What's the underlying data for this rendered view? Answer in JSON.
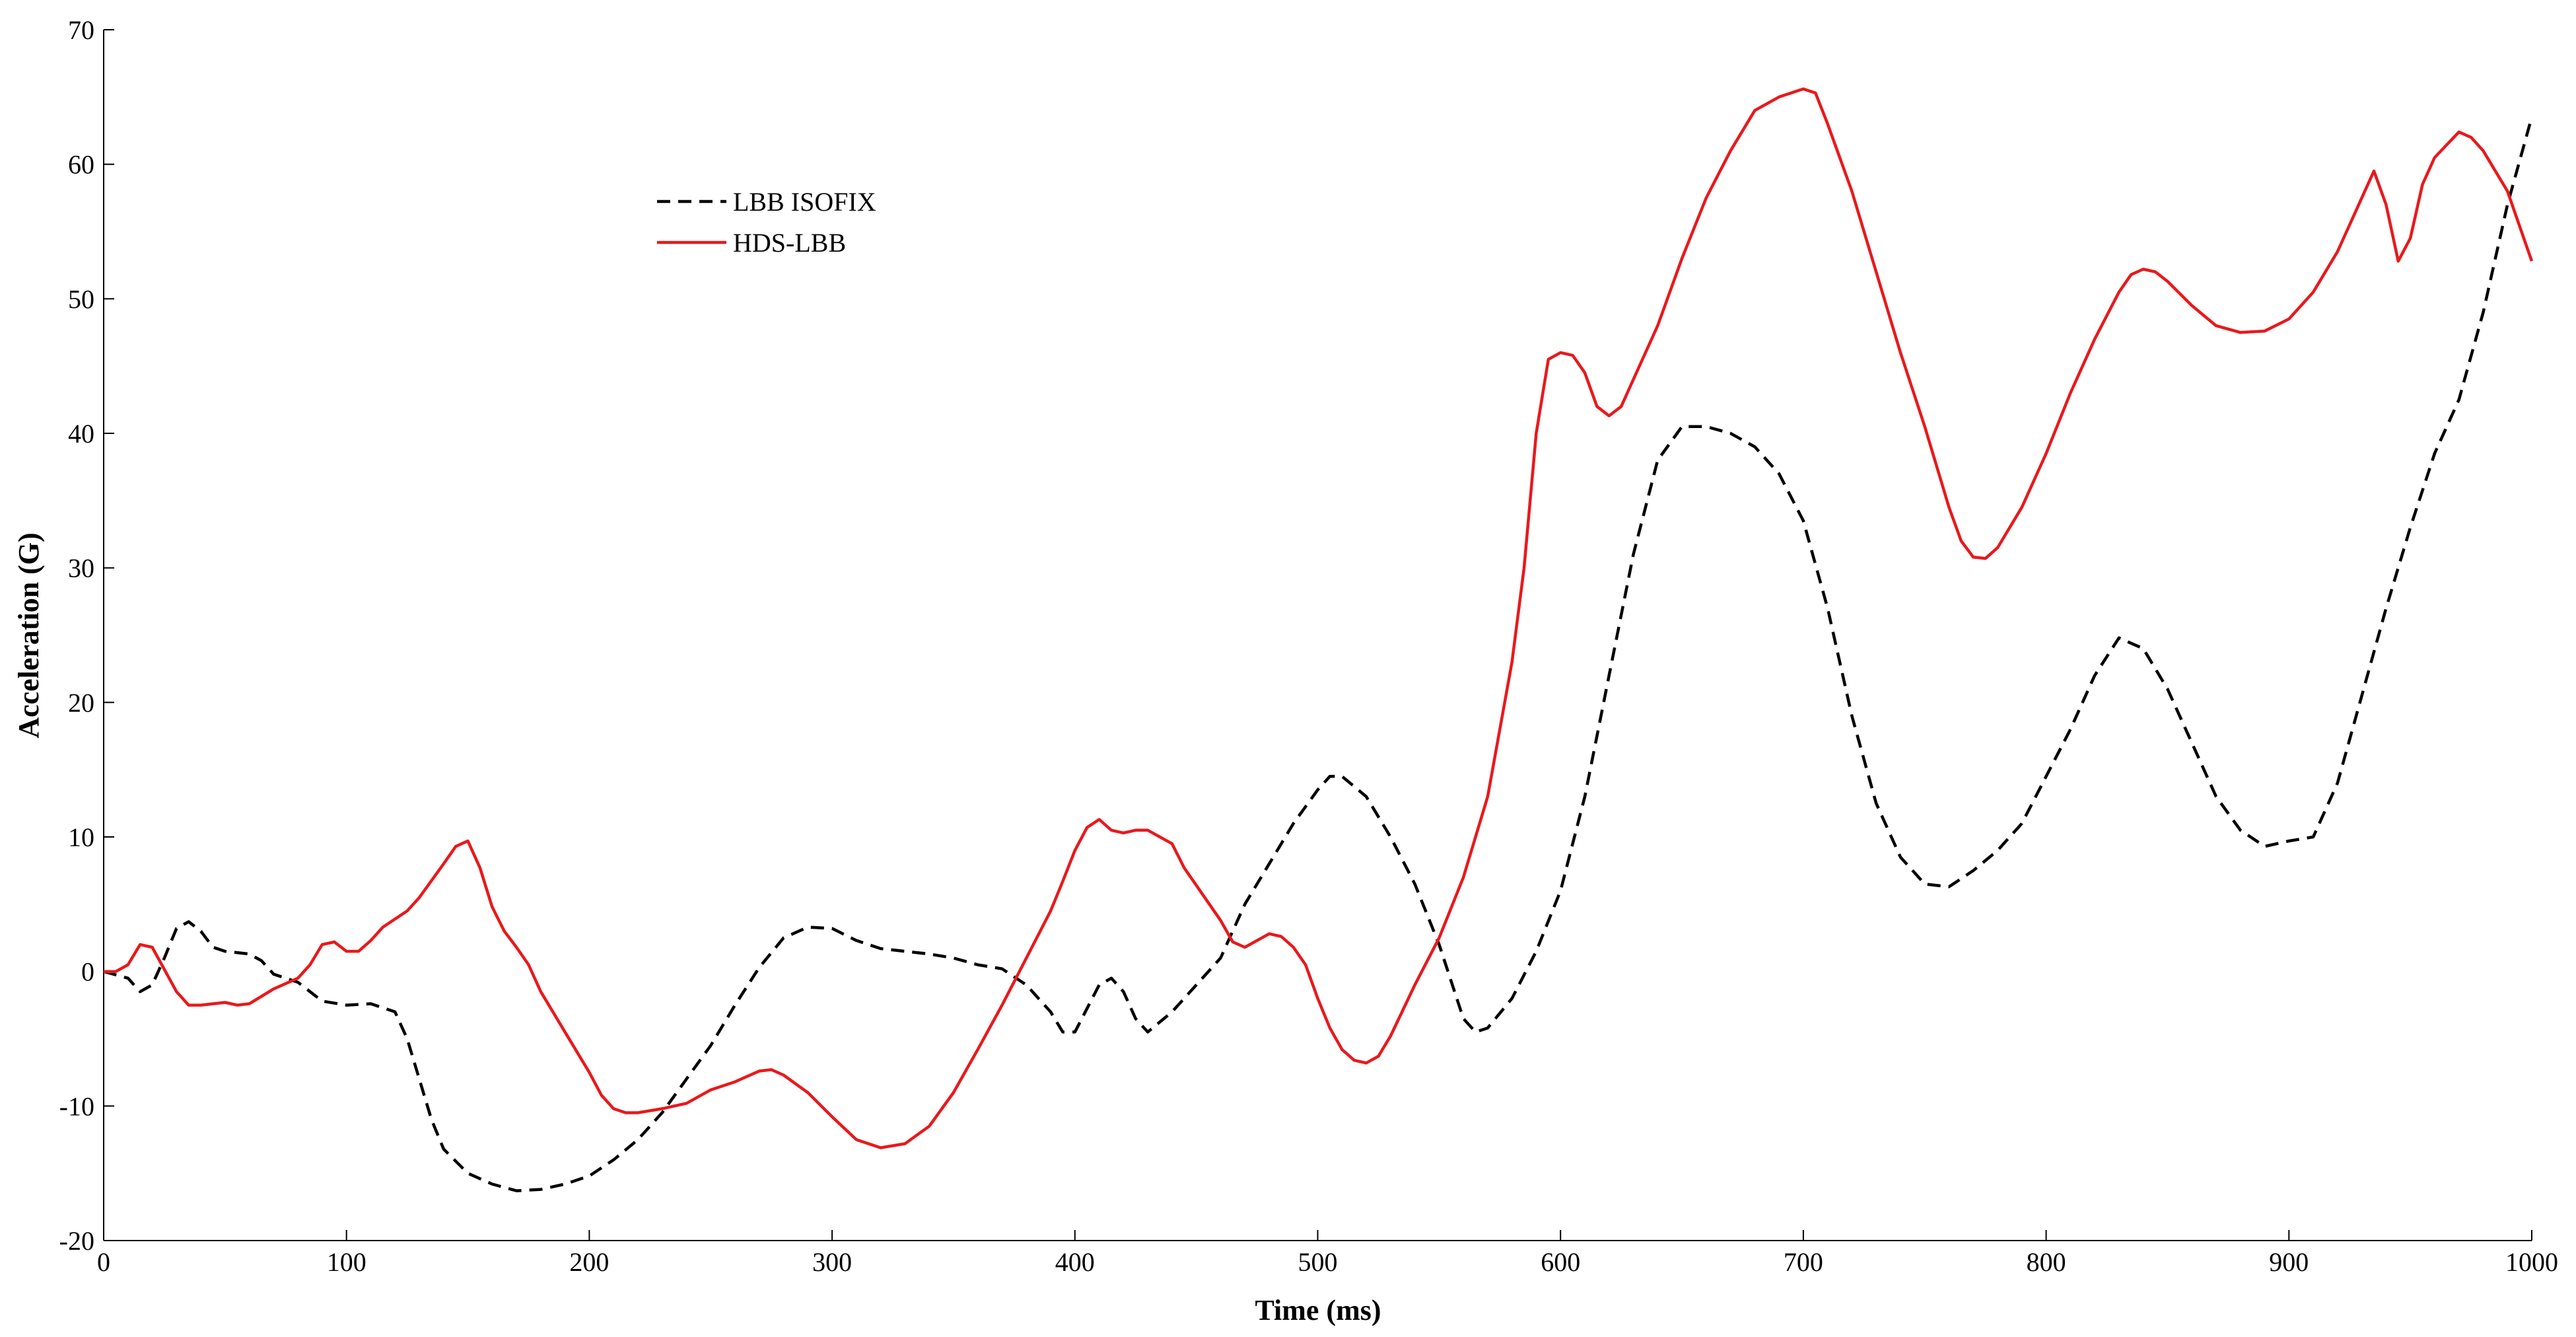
{
  "chart_data": {
    "type": "line",
    "xlabel": "Time (ms)",
    "ylabel": "Acceleration (G)",
    "xlim": [
      0,
      1000
    ],
    "ylim": [
      -20,
      70
    ],
    "xticks": [
      0,
      100,
      200,
      300,
      400,
      500,
      600,
      700,
      800,
      900,
      1000
    ],
    "yticks": [
      -20,
      -10,
      0,
      10,
      20,
      30,
      40,
      50,
      60,
      70
    ],
    "grid": false,
    "legend": "upper-left",
    "series": [
      {
        "name": "LBB ISOFIX",
        "color": "#000000",
        "dash": true,
        "x": [
          0,
          10,
          15,
          20,
          25,
          30,
          35,
          40,
          45,
          50,
          60,
          65,
          70,
          80,
          90,
          100,
          110,
          120,
          125,
          130,
          135,
          140,
          150,
          160,
          170,
          180,
          190,
          200,
          210,
          220,
          230,
          240,
          250,
          260,
          270,
          280,
          290,
          300,
          310,
          320,
          330,
          340,
          350,
          360,
          370,
          380,
          390,
          395,
          400,
          410,
          415,
          420,
          425,
          430,
          440,
          450,
          460,
          470,
          480,
          490,
          500,
          505,
          510,
          520,
          530,
          540,
          550,
          560,
          565,
          570,
          580,
          590,
          600,
          610,
          620,
          630,
          640,
          650,
          660,
          670,
          680,
          690,
          700,
          710,
          720,
          730,
          740,
          750,
          760,
          770,
          780,
          790,
          800,
          810,
          820,
          830,
          840,
          850,
          860,
          870,
          880,
          890,
          900,
          910,
          920,
          930,
          940,
          950,
          960,
          970,
          980,
          990,
          1000
        ],
        "values": [
          0,
          -0.5,
          -1.5,
          -1,
          1,
          3.2,
          3.7,
          3,
          1.8,
          1.5,
          1.3,
          0.8,
          -0.2,
          -0.8,
          -2.2,
          -2.5,
          -2.4,
          -3,
          -5,
          -8,
          -11,
          -13.2,
          -15,
          -15.8,
          -16.3,
          -16.2,
          -15.8,
          -15.2,
          -14,
          -12.5,
          -10.5,
          -8,
          -5.5,
          -2.5,
          0.3,
          2.5,
          3.3,
          3.2,
          2.3,
          1.7,
          1.5,
          1.3,
          1,
          0.5,
          0.2,
          -1,
          -3,
          -4.5,
          -4.5,
          -1,
          -0.5,
          -1.5,
          -3.5,
          -4.5,
          -3,
          -1,
          1,
          5,
          8,
          11,
          13.5,
          14.5,
          14.5,
          13,
          10,
          6.5,
          2,
          -3.5,
          -4.5,
          -4.2,
          -2,
          1.5,
          6,
          13,
          22,
          31,
          38,
          40.5,
          40.5,
          40,
          39,
          37,
          33.5,
          27,
          19,
          12.5,
          8.5,
          6.5,
          6.3,
          7.5,
          9,
          11,
          14.5,
          18,
          22,
          24.8,
          24,
          21,
          17,
          13,
          10.5,
          9.3,
          9.7,
          10,
          14,
          20.5,
          27,
          33,
          38.5,
          42.5,
          49,
          57,
          63.5
        ]
      },
      {
        "name": "HDS-LBB",
        "color": "#e8191c",
        "dash": false,
        "x": [
          0,
          5,
          10,
          15,
          20,
          30,
          35,
          40,
          50,
          55,
          60,
          70,
          80,
          85,
          90,
          95,
          100,
          105,
          110,
          115,
          125,
          130,
          140,
          145,
          150,
          155,
          160,
          165,
          170,
          175,
          180,
          190,
          200,
          205,
          210,
          215,
          220,
          230,
          240,
          250,
          260,
          270,
          275,
          280,
          290,
          300,
          310,
          320,
          330,
          340,
          350,
          360,
          370,
          380,
          390,
          395,
          400,
          405,
          410,
          415,
          420,
          425,
          430,
          440,
          445,
          450,
          460,
          465,
          470,
          480,
          485,
          490,
          495,
          500,
          505,
          510,
          515,
          520,
          525,
          530,
          540,
          550,
          560,
          570,
          580,
          585,
          590,
          595,
          600,
          605,
          610,
          615,
          620,
          625,
          630,
          640,
          650,
          660,
          670,
          680,
          690,
          700,
          705,
          710,
          720,
          730,
          740,
          750,
          760,
          765,
          770,
          775,
          780,
          790,
          800,
          810,
          820,
          830,
          835,
          840,
          845,
          850,
          860,
          870,
          880,
          890,
          900,
          910,
          920,
          930,
          935,
          940,
          945,
          950,
          955,
          960,
          970,
          975,
          980,
          990,
          1000
        ],
        "values": [
          0,
          0,
          0.5,
          2,
          1.8,
          -1.5,
          -2.5,
          -2.5,
          -2.3,
          -2.5,
          -2.4,
          -1.3,
          -0.5,
          0.5,
          2,
          2.2,
          1.5,
          1.5,
          2.3,
          3.3,
          4.5,
          5.5,
          8,
          9.3,
          9.7,
          7.7,
          4.8,
          3,
          1.8,
          0.5,
          -1.5,
          -4.5,
          -7.5,
          -9.2,
          -10.2,
          -10.5,
          -10.5,
          -10.2,
          -9.8,
          -8.8,
          -8.2,
          -7.4,
          -7.3,
          -7.7,
          -9,
          -10.8,
          -12.5,
          -13.1,
          -12.8,
          -11.5,
          -9,
          -5.8,
          -2.5,
          1,
          4.5,
          6.7,
          9,
          10.7,
          11.3,
          10.5,
          10.3,
          10.5,
          10.5,
          9.5,
          7.7,
          6.4,
          3.8,
          2.2,
          1.8,
          2.8,
          2.6,
          1.8,
          0.5,
          -2,
          -4.2,
          -5.8,
          -6.6,
          -6.8,
          -6.3,
          -4.8,
          -1,
          2.5,
          7,
          13,
          23,
          30,
          40,
          45.5,
          46,
          45.8,
          44.5,
          42,
          41.3,
          42,
          44,
          48,
          53,
          57.5,
          61,
          64,
          65,
          65.6,
          65.3,
          63,
          58,
          52,
          46,
          40.5,
          34.5,
          32,
          30.8,
          30.7,
          31.5,
          34.5,
          38.5,
          43,
          47,
          50.5,
          51.8,
          52.2,
          52,
          51.3,
          49.5,
          48,
          47.5,
          47.6,
          48.5,
          50.5,
          53.5,
          57.5,
          59.5,
          57,
          52.8,
          54.5,
          58.5,
          60.5,
          62.4,
          62,
          61,
          58,
          52.8
        ]
      }
    ]
  }
}
